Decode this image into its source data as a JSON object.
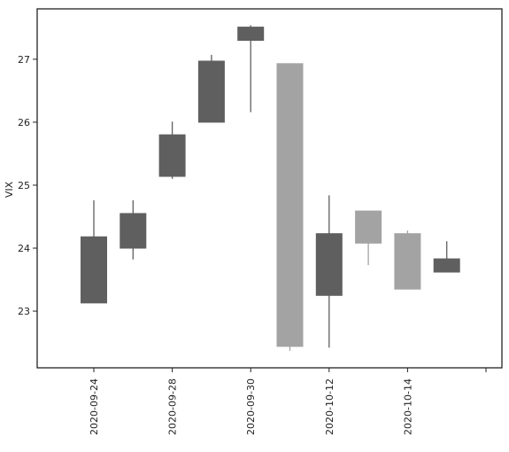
{
  "chart_data": {
    "type": "candlestick",
    "title": "",
    "xlabel": "",
    "ylabel": "VIX",
    "ylim": [
      22.1,
      27.8
    ],
    "y_ticks": [
      23,
      24,
      25,
      26,
      27
    ],
    "x_tick_labels": [
      "2020-09-24",
      "2020-09-28",
      "2020-09-30",
      "2020-10-12",
      "2020-10-14",
      ""
    ],
    "grid": false,
    "legend": "none",
    "colors": {
      "down": "#5f5f5f",
      "up": "#a3a3a3"
    },
    "candles": [
      {
        "open": 24.18,
        "high": 24.76,
        "low": 23.13,
        "close": 23.13,
        "color": "down"
      },
      {
        "open": 24.55,
        "high": 24.76,
        "low": 23.82,
        "close": 24.0,
        "color": "down"
      },
      {
        "open": 25.8,
        "high": 26.01,
        "low": 25.1,
        "close": 25.14,
        "color": "down"
      },
      {
        "open": 26.97,
        "high": 27.07,
        "low": 26.0,
        "close": 26.0,
        "color": "down"
      },
      {
        "open": 27.51,
        "high": 27.54,
        "low": 26.16,
        "close": 27.3,
        "color": "down"
      },
      {
        "open": 22.44,
        "high": 26.93,
        "low": 22.37,
        "close": 26.93,
        "color": "up"
      },
      {
        "open": 24.23,
        "high": 24.84,
        "low": 22.42,
        "close": 23.25,
        "color": "down"
      },
      {
        "open": 24.08,
        "high": 24.59,
        "low": 23.73,
        "close": 24.59,
        "color": "up"
      },
      {
        "open": 23.35,
        "high": 24.28,
        "low": 23.35,
        "close": 24.23,
        "color": "up"
      },
      {
        "open": 23.83,
        "high": 24.11,
        "low": 23.62,
        "close": 23.62,
        "color": "down"
      }
    ]
  }
}
